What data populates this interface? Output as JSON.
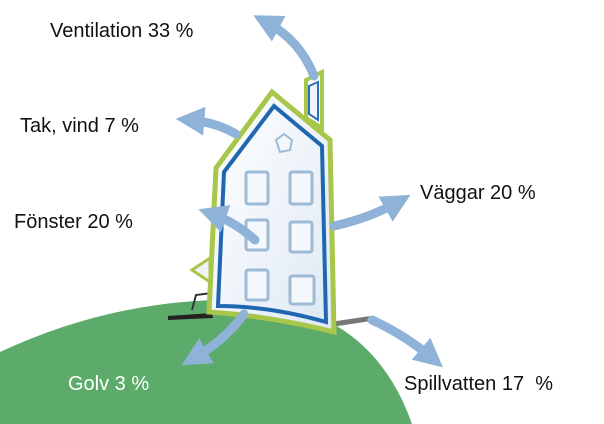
{
  "nodes": [
    {
      "label": "Ventilation 33 %"
    },
    {
      "label": "Tak, vind 7 %"
    },
    {
      "label": "Fönster 20 %"
    },
    {
      "label": "Väggar 20 %"
    },
    {
      "label": "Spillvatten 17  %"
    },
    {
      "label": "Golv 3 %"
    }
  ]
}
